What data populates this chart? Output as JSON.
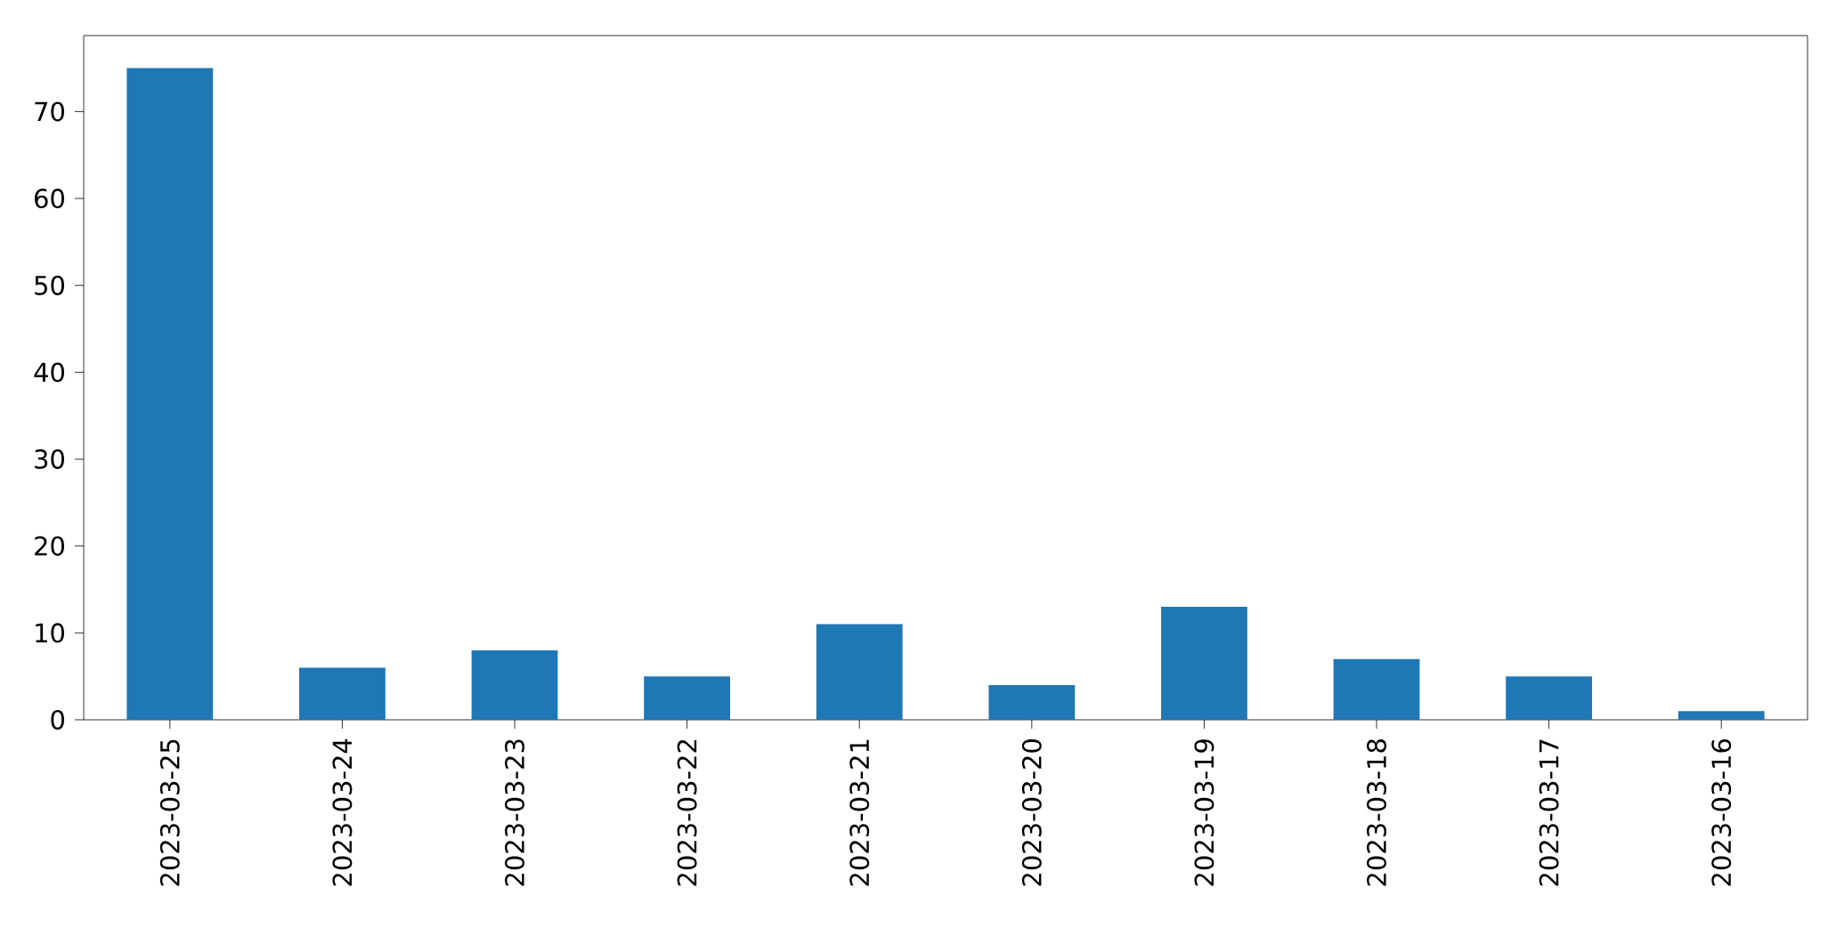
{
  "chart_data": {
    "type": "bar",
    "categories": [
      "2023-03-25",
      "2023-03-24",
      "2023-03-23",
      "2023-03-22",
      "2023-03-21",
      "2023-03-20",
      "2023-03-19",
      "2023-03-18",
      "2023-03-17",
      "2023-03-16"
    ],
    "values": [
      75,
      6,
      8,
      5,
      11,
      4,
      13,
      7,
      5,
      1
    ],
    "color": "#1f77b4",
    "ylim": [
      0,
      78.75
    ],
    "yticks": [
      0,
      10,
      20,
      30,
      40,
      50,
      60,
      70
    ]
  }
}
